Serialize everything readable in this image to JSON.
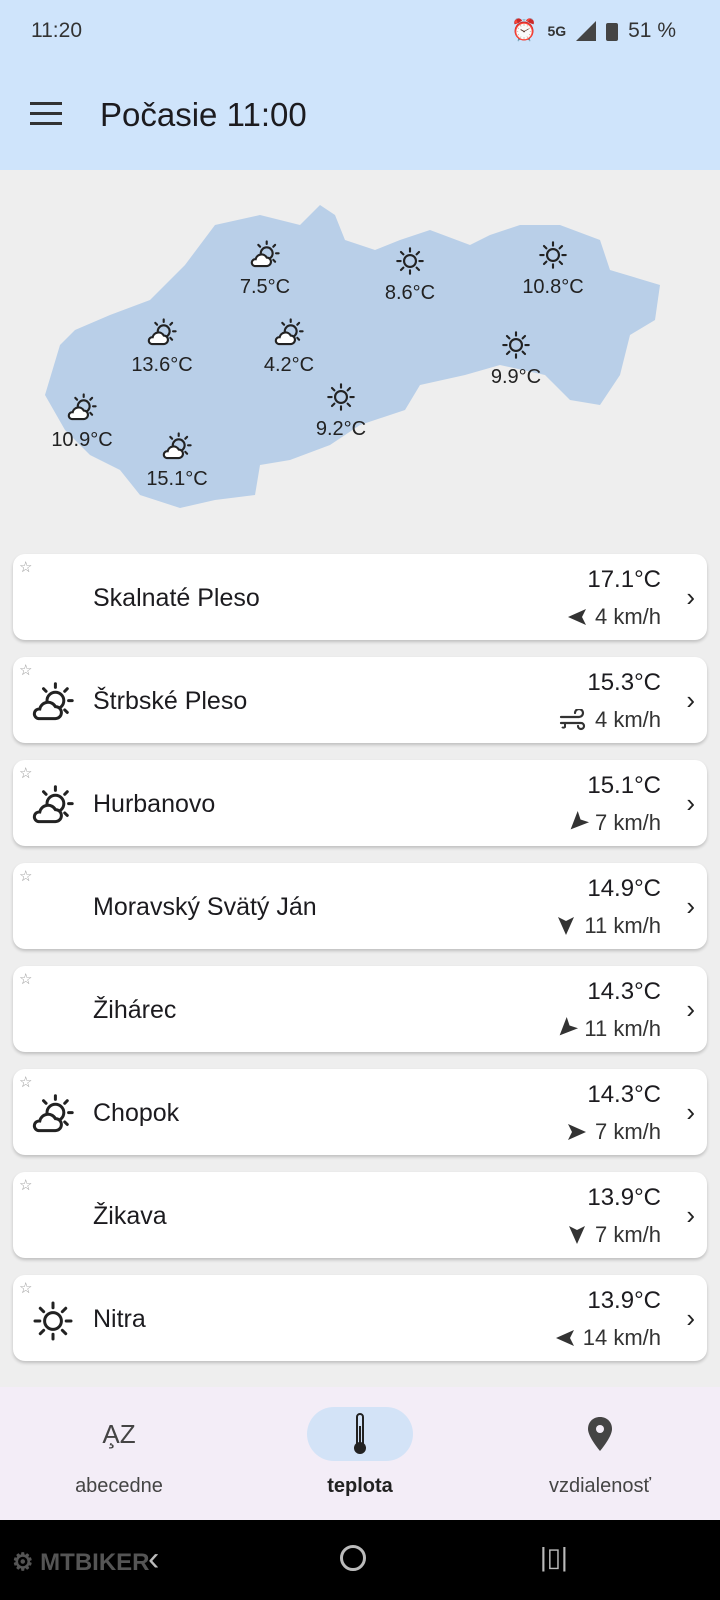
{
  "status": {
    "time": "11:20",
    "network": "5G",
    "battery": "51 %"
  },
  "header": {
    "title": "Počasie 11:00"
  },
  "map": {
    "color": "#b9cfe8",
    "points": [
      {
        "temp": "7.5°C",
        "icon": "partly-cloudy"
      },
      {
        "temp": "8.6°C",
        "icon": "sun"
      },
      {
        "temp": "10.8°C",
        "icon": "sun"
      },
      {
        "temp": "13.6°C",
        "icon": "partly-cloudy"
      },
      {
        "temp": "4.2°C",
        "icon": "partly-cloudy"
      },
      {
        "temp": "9.9°C",
        "icon": "sun"
      },
      {
        "temp": "10.9°C",
        "icon": "partly-cloudy"
      },
      {
        "temp": "9.2°C",
        "icon": "sun"
      },
      {
        "temp": "15.1°C",
        "icon": "partly-cloudy"
      }
    ]
  },
  "stations": [
    {
      "name": "Skalnaté Pleso",
      "temp": "17.1°C",
      "wind": "4 km/h",
      "icon": "none",
      "wind_dir_deg": 180,
      "favorite": false
    },
    {
      "name": "Štrbské Pleso",
      "temp": "15.3°C",
      "wind": "4 km/h",
      "icon": "partly-cloudy",
      "wind_dir_deg": "variable",
      "favorite": false
    },
    {
      "name": "Hurbanovo",
      "temp": "15.1°C",
      "wind": "7 km/h",
      "icon": "partly-cloudy",
      "wind_dir_deg": 225,
      "favorite": false
    },
    {
      "name": "Moravský Svätý Ján",
      "temp": "14.9°C",
      "wind": "11 km/h",
      "icon": "none",
      "wind_dir_deg": 270,
      "favorite": false
    },
    {
      "name": "Žihárec",
      "temp": "14.3°C",
      "wind": "11 km/h",
      "icon": "none",
      "wind_dir_deg": 225,
      "favorite": false
    },
    {
      "name": "Chopok",
      "temp": "14.3°C",
      "wind": "7 km/h",
      "icon": "partly-cloudy",
      "wind_dir_deg": 0,
      "favorite": false
    },
    {
      "name": "Žikava",
      "temp": "13.9°C",
      "wind": "7 km/h",
      "icon": "none",
      "wind_dir_deg": 270,
      "favorite": false
    },
    {
      "name": "Nitra",
      "temp": "13.9°C",
      "wind": "14 km/h",
      "icon": "sun",
      "wind_dir_deg": 180,
      "favorite": false
    }
  ],
  "nav": {
    "tabs": [
      {
        "label": "abecedne",
        "icon": "sort-az-icon"
      },
      {
        "label": "teplota",
        "icon": "thermometer-icon",
        "active": true
      },
      {
        "label": "vzdialenosť",
        "icon": "location-pin-icon"
      }
    ],
    "active_color": "#d3e3f7"
  },
  "watermark": "MTBIKER"
}
